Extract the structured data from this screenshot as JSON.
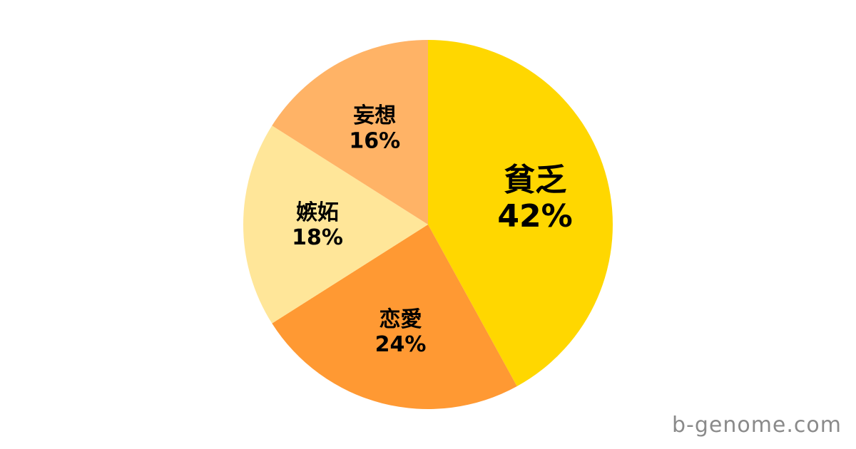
{
  "chart_data": {
    "type": "pie",
    "title": "",
    "slices": [
      {
        "label": "貧乏",
        "value": 42,
        "color": "#FFD700"
      },
      {
        "label": "恋愛",
        "value": 24,
        "color": "#FF9933"
      },
      {
        "label": "嫉妬",
        "value": 18,
        "color": "#FFE699"
      },
      {
        "label": "妄想",
        "value": 16,
        "color": "#FFB366"
      }
    ],
    "unit": "%",
    "start_angle_deg": 0,
    "direction": "clockwise",
    "legend_position": "none",
    "labels_inside": true,
    "label_text_color": "#000000",
    "background": "#FFFFFF"
  },
  "watermark": {
    "text": "b-genome.com",
    "color": "#8A8A8A"
  }
}
